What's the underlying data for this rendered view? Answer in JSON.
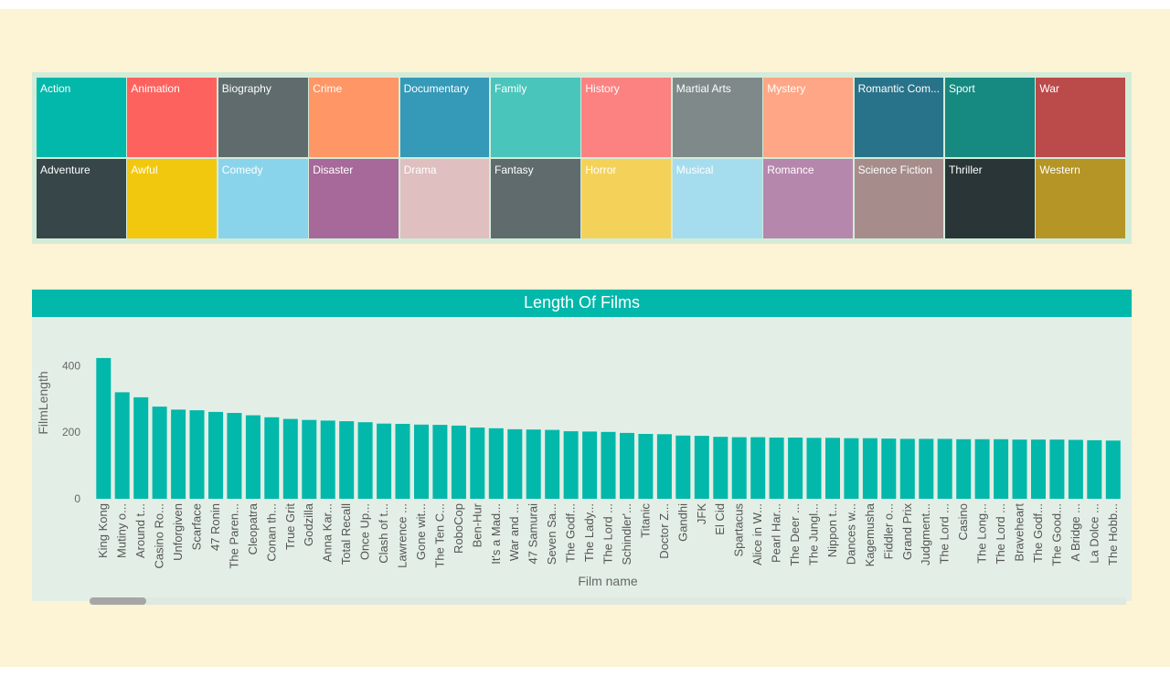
{
  "slicer": {
    "row1": [
      {
        "label": "Action",
        "color": "#01B8AA"
      },
      {
        "label": "Animation",
        "color": "#FD625E"
      },
      {
        "label": "Biography",
        "color": "#5F6B6D"
      },
      {
        "label": "Crime",
        "color": "#FE9666"
      },
      {
        "label": "Documentary",
        "color": "#3599B8"
      },
      {
        "label": "Family",
        "color": "#4AC5BB"
      },
      {
        "label": "History",
        "color": "#FB8281"
      },
      {
        "label": "Martial Arts",
        "color": "#7F898A"
      },
      {
        "label": "Mystery",
        "color": "#FEA685"
      },
      {
        "label": "Romantic Com...",
        "color": "#28738A"
      },
      {
        "label": "Sport",
        "color": "#168980"
      },
      {
        "label": "War",
        "color": "#BB4A4A"
      }
    ],
    "row2": [
      {
        "label": "Adventure",
        "color": "#374649"
      },
      {
        "label": "Awful",
        "color": "#F2C80F"
      },
      {
        "label": "Comedy",
        "color": "#8AD4EB"
      },
      {
        "label": "Disaster",
        "color": "#A66999"
      },
      {
        "label": "Drama",
        "color": "#DFBFBF"
      },
      {
        "label": "Fantasy",
        "color": "#5F6B6D"
      },
      {
        "label": "Horror",
        "color": "#F4D25A"
      },
      {
        "label": "Musical",
        "color": "#A6DDEE"
      },
      {
        "label": "Romance",
        "color": "#B687AC"
      },
      {
        "label": "Science Fiction",
        "color": "#A68D8C"
      },
      {
        "label": "Thriller",
        "color": "#293537"
      },
      {
        "label": "Western",
        "color": "#B59525"
      }
    ]
  },
  "chart": {
    "title": "Length Of Films",
    "bar_color": "#01B8AA"
  },
  "chart_data": {
    "type": "bar",
    "title": "Length Of Films",
    "xlabel": "Film name",
    "ylabel": "FilmLength",
    "ylim": [
      0,
      420
    ],
    "yticks": [
      0,
      200,
      400
    ],
    "grid": false,
    "categories": [
      "King Kong",
      "Mutiny o...",
      "Around t...",
      "Casino Ro...",
      "Unforgiven",
      "Scarface",
      "47 Ronin",
      "The Paren...",
      "Cleopatra",
      "Conan th...",
      "True Grit",
      "Godzilla",
      "Anna Kar...",
      "Total Recall",
      "Once Up...",
      "Clash of t...",
      "Lawrence ...",
      "Gone wit...",
      "The Ten C...",
      "RoboCop",
      "Ben-Hur",
      "It's a Mad...",
      "War and ...",
      "47 Samurai",
      "Seven Sa...",
      "The Godf...",
      "The Lady...",
      "The Lord ...",
      "Schindler'...",
      "Titanic",
      "Doctor Z...",
      "Gandhi",
      "JFK",
      "El Cid",
      "Spartacus",
      "Alice in W...",
      "Pearl Har...",
      "The Deer ...",
      "The Jungl...",
      "Nippon t...",
      "Dances w...",
      "Kagemusha",
      "Fiddler o...",
      "Grand Prix",
      "Judgment...",
      "The Lord ...",
      "Casino",
      "The Long...",
      "The Lord ...",
      "Braveheart",
      "The Godf...",
      "The Good...",
      "A Bridge ...",
      "La Dolce ...",
      "The Hobb..."
    ],
    "values": [
      423,
      320,
      305,
      277,
      268,
      266,
      261,
      258,
      251,
      245,
      240,
      237,
      235,
      233,
      230,
      226,
      225,
      223,
      222,
      220,
      214,
      212,
      209,
      208,
      207,
      203,
      202,
      201,
      198,
      195,
      194,
      190,
      189,
      186,
      185,
      185,
      184,
      184,
      183,
      183,
      182,
      182,
      181,
      180,
      180,
      180,
      179,
      179,
      179,
      178,
      178,
      178,
      177,
      176,
      175
    ]
  }
}
